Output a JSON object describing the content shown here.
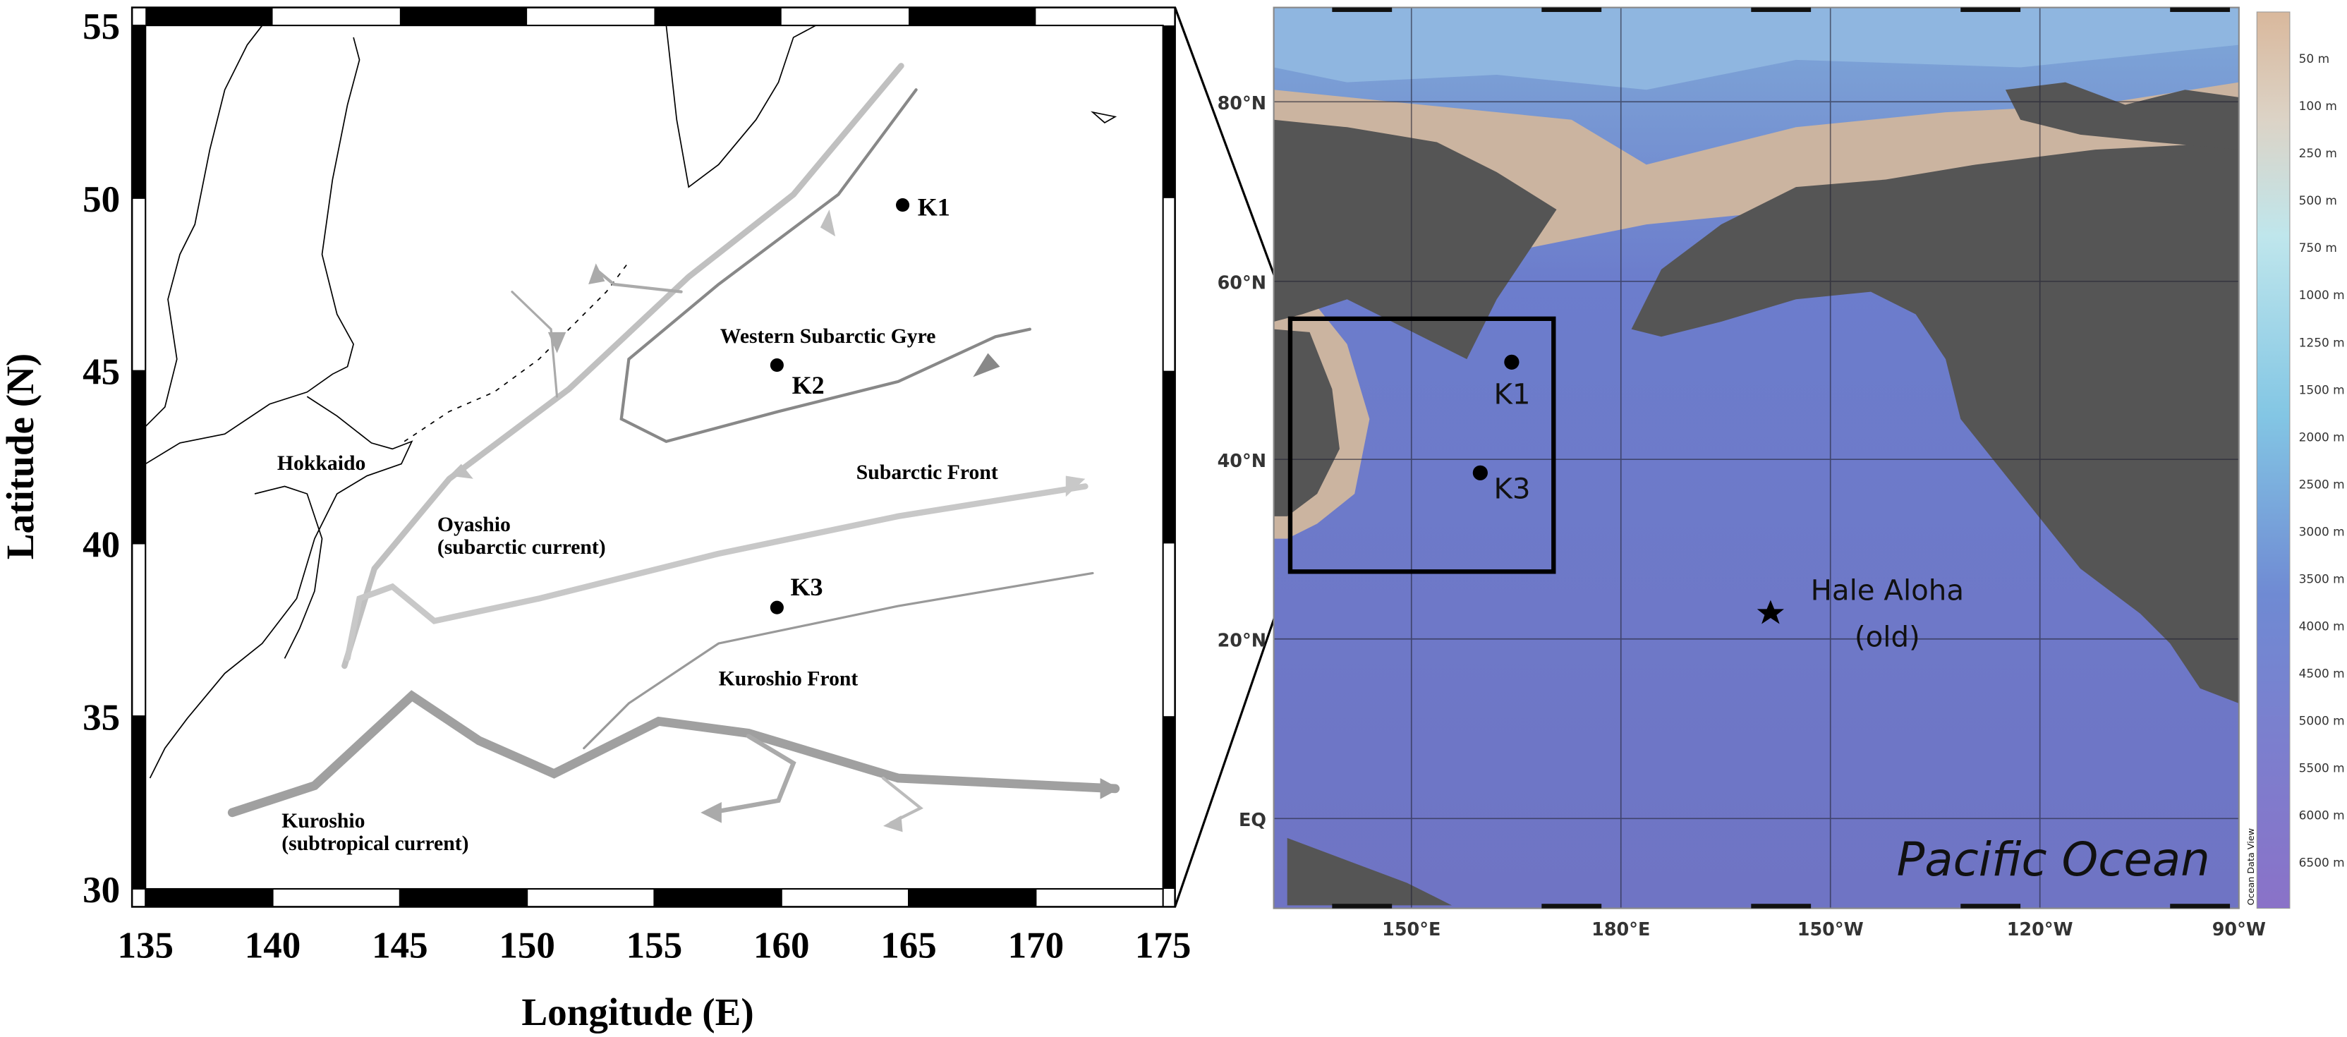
{
  "left_map": {
    "xlabel": "Longitude (E)",
    "ylabel": "Latitude (N)",
    "xlim": [
      135,
      175
    ],
    "ylim": [
      30,
      55
    ],
    "xticks": [
      135,
      140,
      145,
      150,
      155,
      160,
      165,
      170,
      175
    ],
    "yticks": [
      30,
      35,
      40,
      45,
      50,
      55
    ],
    "stations": [
      "K1",
      "K2",
      "K3"
    ],
    "labels": [
      "Hokkaido",
      "Western Subarctic Gyre",
      "Subarctic Front",
      "Oyashio",
      "(subarctic current)",
      "Kuroshio Front",
      "Kuroshio",
      "(subtropical current)"
    ]
  },
  "right_map": {
    "title": "Pacific Ocean",
    "lat_labels": [
      "80°N",
      "60°N",
      "40°N",
      "20°N",
      "EQ"
    ],
    "lon_labels": [
      "150°E",
      "180°E",
      "150°W",
      "120°W",
      "90°W"
    ],
    "stations": [
      "K1",
      "K3"
    ],
    "site_label": [
      "Hale Aloha",
      "(old)"
    ],
    "colorbar_labels": [
      "50 m",
      "100 m",
      "250 m",
      "500 m",
      "750 m",
      "1000 m",
      "1250 m",
      "1500 m",
      "2000 m",
      "2500 m",
      "3000 m",
      "3500 m",
      "4000 m",
      "4500 m",
      "5000 m",
      "5500 m",
      "6000 m",
      "6500 m"
    ],
    "credit": "Ocean Data View"
  }
}
